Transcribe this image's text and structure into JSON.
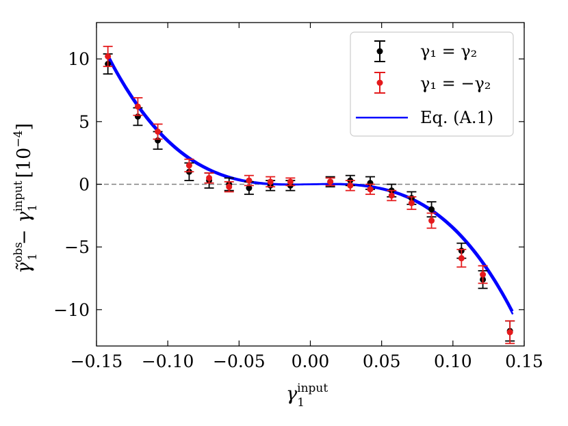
{
  "chart_data": {
    "type": "scatter",
    "title": "",
    "xlabel": "γ1^input",
    "ylabel": "γ̃1^obs − γ1^input [10^−4]",
    "xlabel_base": "γ",
    "xlabel_sub": "1",
    "xlabel_sup": "input",
    "ylabel_parts": {
      "a": "γ̃",
      "a_sub": "1",
      "a_sup": "obs",
      "minus": "−",
      "b": "γ",
      "b_sub": "1",
      "b_sup": "input",
      "unit": "[10",
      "unit_sup": "−4",
      "unit_close": "]"
    },
    "xlim": [
      -0.15,
      0.15
    ],
    "ylim": [
      -12.9,
      12.9
    ],
    "xticks": [
      -0.15,
      -0.1,
      -0.05,
      0.0,
      0.05,
      0.1,
      0.15
    ],
    "xtick_labels": [
      "−0.15",
      "−0.10",
      "−0.05",
      "0.00",
      "0.05",
      "0.10",
      "0.15"
    ],
    "yticks": [
      -10,
      -5,
      0,
      5,
      10
    ],
    "ytick_labels": [
      "−10",
      "−5",
      "0",
      "5",
      "10"
    ],
    "reference_line": {
      "y": 0,
      "style": "dashed",
      "color": "#808080"
    },
    "legend_position": "top-right",
    "series": [
      {
        "name": "γ1 = γ2",
        "legend_label": "γ₁ = γ₂",
        "marker": "errorbar",
        "color": "#000000",
        "x": [
          -0.142,
          -0.121,
          -0.107,
          -0.085,
          -0.071,
          -0.057,
          -0.043,
          -0.028,
          -0.014,
          0.014,
          0.028,
          0.042,
          0.057,
          0.071,
          0.085,
          0.106,
          0.121,
          0.14
        ],
        "y": [
          9.6,
          5.4,
          3.5,
          1.0,
          0.3,
          0.0,
          -0.3,
          -0.1,
          -0.1,
          0.2,
          0.3,
          0.1,
          -0.5,
          -1.1,
          -2.0,
          -5.3,
          -7.6,
          -11.7
        ],
        "yerr": [
          0.8,
          0.7,
          0.7,
          0.7,
          0.6,
          0.5,
          0.5,
          0.4,
          0.4,
          0.4,
          0.4,
          0.5,
          0.5,
          0.5,
          0.6,
          0.6,
          0.7,
          0.8
        ]
      },
      {
        "name": "γ1 = −γ2",
        "legend_label": "γ₁ = −γ₂",
        "marker": "errorbar",
        "color": "#e41a1c",
        "x": [
          -0.142,
          -0.121,
          -0.107,
          -0.085,
          -0.071,
          -0.057,
          -0.043,
          -0.028,
          -0.014,
          0.014,
          0.028,
          0.042,
          0.057,
          0.071,
          0.085,
          0.106,
          0.121,
          0.14
        ],
        "y": [
          10.2,
          6.2,
          4.2,
          1.5,
          0.5,
          -0.2,
          0.3,
          0.2,
          0.2,
          0.2,
          -0.1,
          -0.4,
          -0.9,
          -1.5,
          -2.9,
          -5.9,
          -7.2,
          -11.8
        ],
        "yerr": [
          0.8,
          0.7,
          0.6,
          0.5,
          0.4,
          0.4,
          0.4,
          0.4,
          0.3,
          0.3,
          0.4,
          0.4,
          0.4,
          0.5,
          0.6,
          0.7,
          0.7,
          0.9
        ]
      },
      {
        "name": "Eq. (A.1)",
        "legend_label": "Eq. (A.1)",
        "marker": "line",
        "color": "#0000ff",
        "model": "y = a*x^3 + b*x",
        "curves": [
          {
            "a": -3680,
            "b": 3.0
          },
          {
            "a": -3680,
            "b": 1.2
          }
        ]
      }
    ]
  }
}
